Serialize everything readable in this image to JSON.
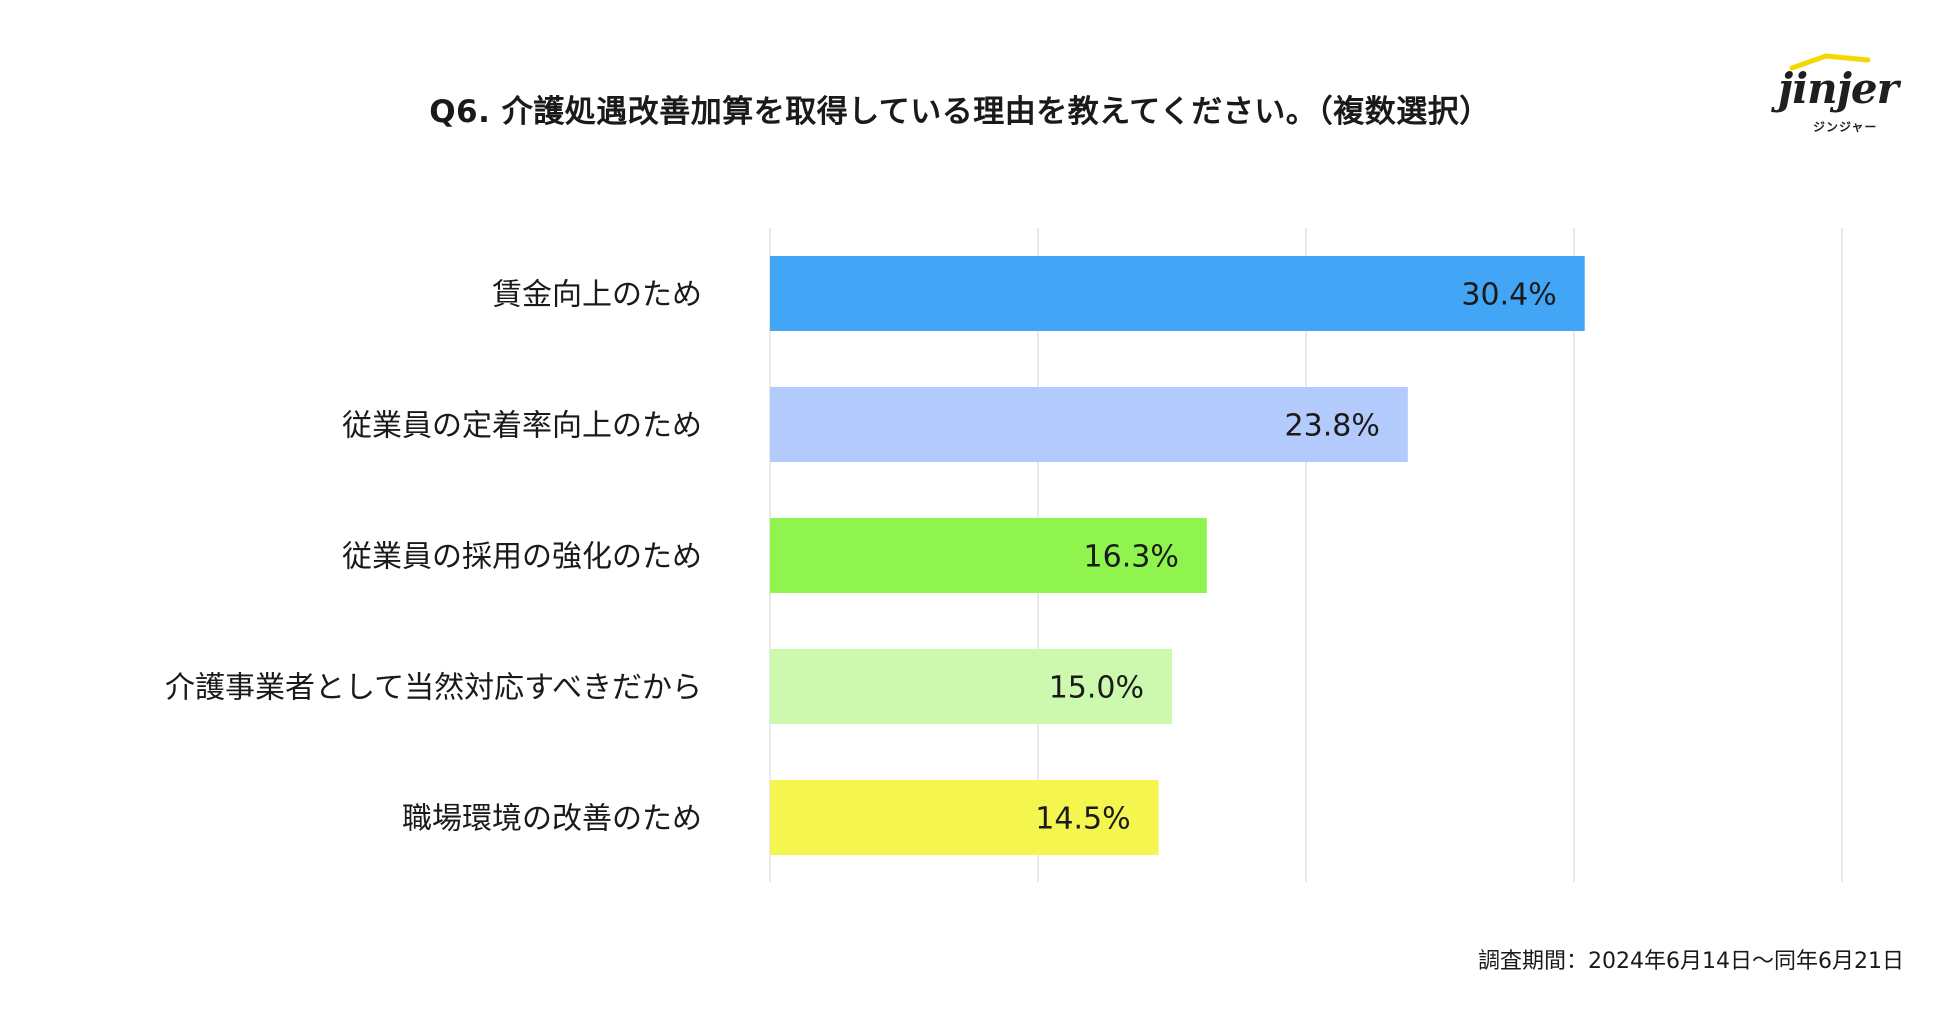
{
  "title": "Q6.  介護処遇改善加算を取得している理由を教えてください。（複数選択）",
  "logo": {
    "word": "jinjer",
    "sub": "ジンジャー"
  },
  "footer": "調査期間：2024年6月14日〜同年6月21日",
  "chart_data": {
    "type": "bar",
    "orientation": "horizontal",
    "categories": [
      "賃金向上のため",
      "従業員の定着率向上のため",
      "従業員の採用の強化のため",
      "介護事業者として当然対応すべきだから",
      "職場環境の改善のため"
    ],
    "values": [
      30.4,
      23.8,
      16.3,
      15.0,
      14.5
    ],
    "value_labels": [
      "30.4%",
      "23.8%",
      "16.3%",
      "15.0%",
      "14.5%"
    ],
    "colors": [
      "#42A5F5",
      "#B3CBFC",
      "#8FF54E",
      "#CDF9AE",
      "#F5F550"
    ],
    "xlim": [
      0,
      40
    ],
    "grid": true,
    "gridline_count": 5
  }
}
